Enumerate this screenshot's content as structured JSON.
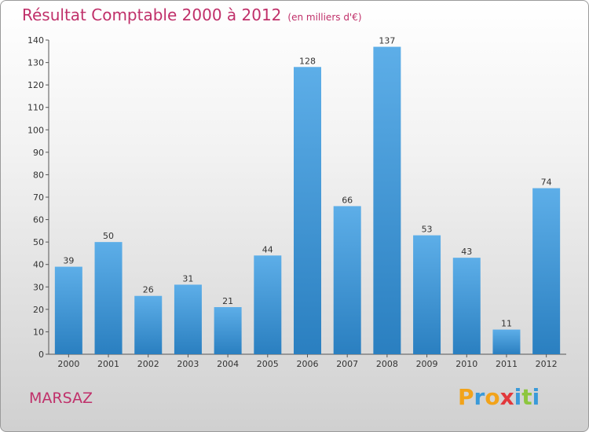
{
  "title": "Résultat Comptable 2000 à 2012",
  "subtitle": "(en milliers d'€)",
  "place": "MARSAZ",
  "logo": [
    "P",
    "r",
    "o",
    "x",
    "i",
    "t",
    "i"
  ],
  "colors": {
    "title": "#c0306a",
    "bar_top": "#5daee8",
    "bar_bottom": "#2a7fc0",
    "logo": [
      "#f2a31a",
      "#3a9ad9",
      "#f2a31a",
      "#e2383c",
      "#3a9ad9",
      "#8dc63f",
      "#3a9ad9"
    ]
  },
  "chart_data": {
    "type": "bar",
    "title": "Résultat Comptable 2000 à 2012",
    "xlabel": "",
    "ylabel": "",
    "categories": [
      "2000",
      "2001",
      "2002",
      "2003",
      "2004",
      "2005",
      "2006",
      "2007",
      "2008",
      "2009",
      "2010",
      "2011",
      "2012"
    ],
    "values": [
      39,
      50,
      26,
      31,
      21,
      44,
      128,
      66,
      137,
      53,
      43,
      11,
      74
    ],
    "ylim": [
      0,
      140
    ],
    "yticks": [
      0,
      10,
      20,
      30,
      40,
      50,
      60,
      70,
      80,
      90,
      100,
      110,
      120,
      130,
      140
    ],
    "grid": false,
    "legend": "none"
  }
}
